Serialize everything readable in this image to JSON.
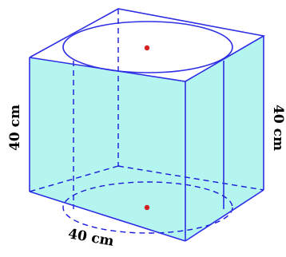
{
  "labels": {
    "height_left": "40 cm",
    "height_right": "40 cm",
    "width_bottom": "40 cm"
  },
  "colors": {
    "face": "#b4f5f0",
    "edge": "#2e2ee6",
    "hidden": "#1a1ad9",
    "center_dot": "#d42020"
  }
}
